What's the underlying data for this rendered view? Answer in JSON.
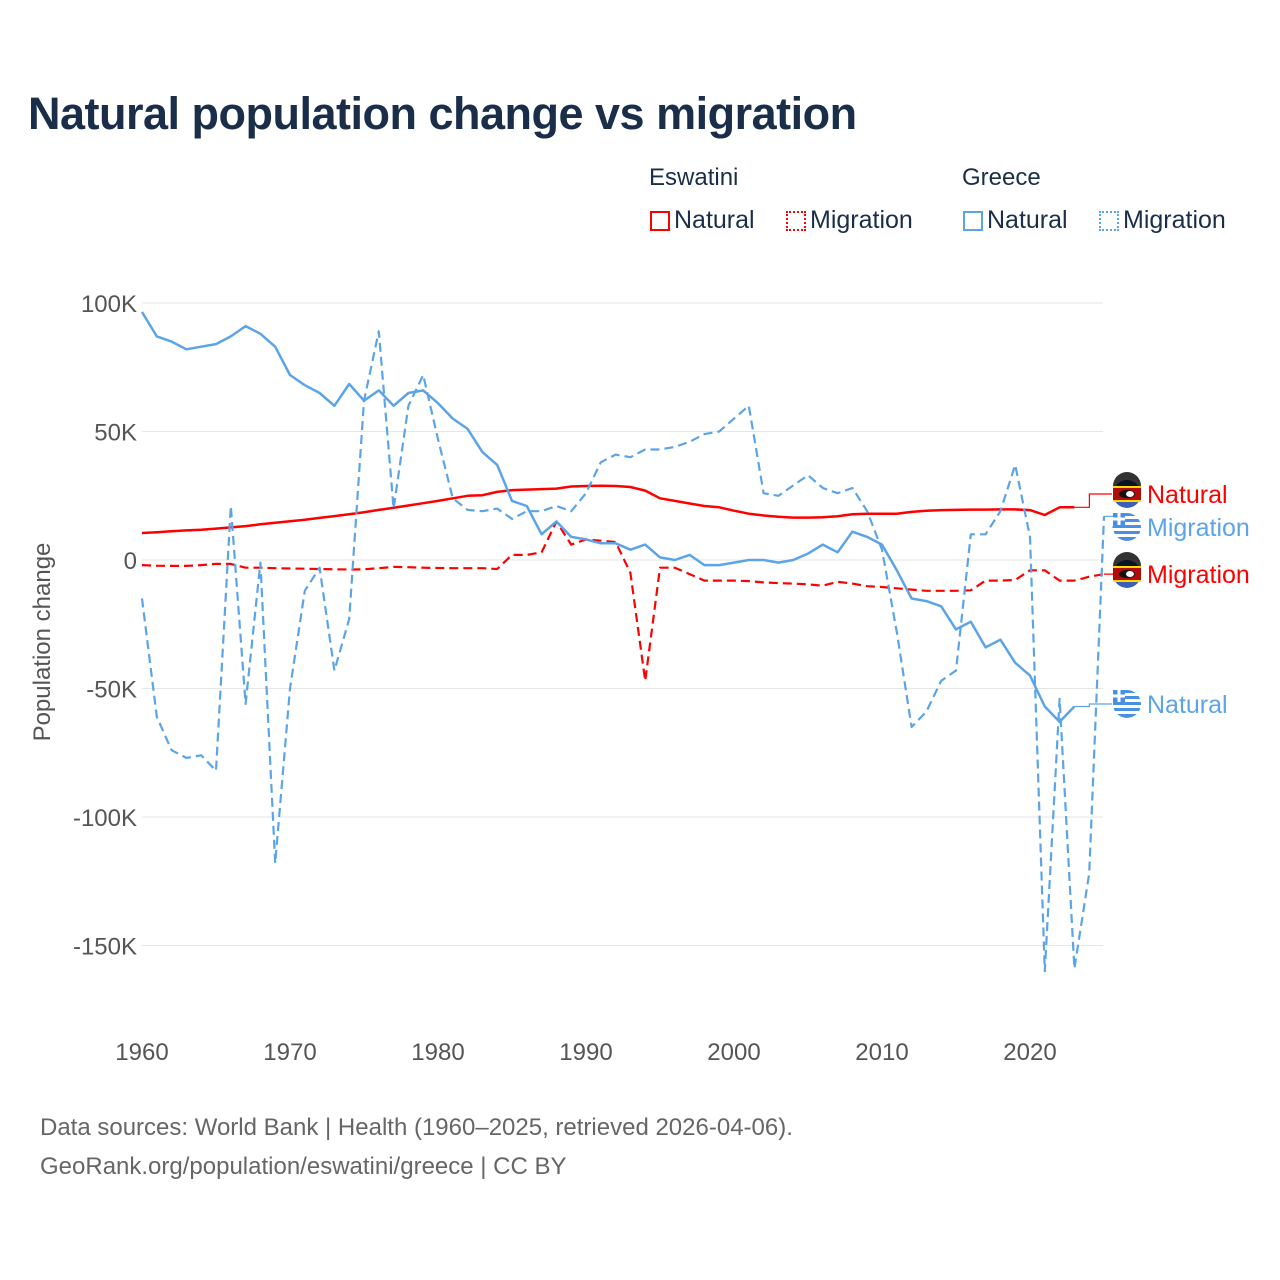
{
  "title": "Natural population change vs migration",
  "legend": {
    "groups": [
      {
        "name": "Eswatini",
        "items": [
          "Natural",
          "Migration"
        ],
        "color": "#ff0000"
      },
      {
        "name": "Greece",
        "items": [
          "Natural",
          "Migration"
        ],
        "color": "#5ba4e8"
      }
    ]
  },
  "footer": {
    "line1": "Data sources: World Bank | Health (1960–2025, retrieved 2026-04-06).",
    "line2": "GeoRank.org/population/eswatini/greece | CC BY"
  },
  "chart_data": {
    "type": "line",
    "title": "Natural population change vs migration",
    "xlabel": "",
    "ylabel": "Population change",
    "xlim": [
      1960,
      2025
    ],
    "ylim": [
      -160000,
      100000
    ],
    "x_ticks": [
      "1960",
      "1970",
      "1980",
      "1990",
      "2000",
      "2010",
      "2020"
    ],
    "y_ticks": [
      {
        "v": 100000,
        "label": "100K"
      },
      {
        "v": 50000,
        "label": "50K"
      },
      {
        "v": 0,
        "label": "0"
      },
      {
        "v": -50000,
        "label": "-50K"
      },
      {
        "v": -100000,
        "label": "-100K"
      },
      {
        "v": -150000,
        "label": "-150K"
      }
    ],
    "grid": true,
    "series": [
      {
        "name": "Eswatini Natural",
        "end_label": "Natural",
        "country": "Eswatini",
        "color": "#ff0000",
        "dash": false,
        "start": 1960,
        "values_k": [
          10.5,
          10.8,
          11.2,
          11.5,
          11.8,
          12.2,
          12.7,
          13.2,
          13.9,
          14.5,
          15.1,
          15.7,
          16.4,
          17.1,
          17.8,
          18.6,
          19.5,
          20.3,
          21.2,
          22.1,
          23,
          24,
          25,
          25.2,
          26.5,
          27.2,
          27.4,
          27.6,
          27.8,
          28.6,
          28.8,
          28.9,
          28.8,
          28.4,
          27,
          24,
          23,
          22,
          21,
          20.5,
          19.2,
          18,
          17.3,
          16.8,
          16.5,
          16.5,
          16.6,
          17,
          17.8,
          18,
          18,
          18,
          18.7,
          19.2,
          19.4,
          19.5,
          19.6,
          19.6,
          19.7,
          19.7,
          19.4,
          17.5,
          20.5,
          20.5
        ]
      },
      {
        "name": "Eswatini Migration",
        "end_label": "Migration",
        "country": "Eswatini",
        "color": "#ff0000",
        "dash": true,
        "start": 1960,
        "values_k": [
          -2,
          -2.2,
          -2.3,
          -2.3,
          -2,
          -1.5,
          -1.5,
          -3,
          -3,
          -3.2,
          -3.3,
          -3.4,
          -3.5,
          -3.6,
          -3.7,
          -3.6,
          -3.2,
          -2.7,
          -2.8,
          -3,
          -3.1,
          -3.2,
          -3.2,
          -3.2,
          -3.5,
          2,
          2,
          3,
          15,
          6,
          8,
          7.5,
          7,
          -5,
          -47,
          -3,
          -3,
          -5.5,
          -8,
          -8,
          -8,
          -8.2,
          -8.7,
          -9,
          -9.2,
          -9.5,
          -10,
          -8.5,
          -9.2,
          -10.2,
          -10.5,
          -11,
          -11.5,
          -12,
          -12,
          -12,
          -11.8,
          -8,
          -8,
          -7.8,
          -4,
          -4,
          -8,
          -8,
          -6.5,
          -5.5
        ]
      },
      {
        "name": "Greece Natural",
        "end_label": "Natural",
        "country": "Greece",
        "color": "#5ba4e8",
        "dash": false,
        "start": 1960,
        "values_k": [
          96.5,
          87,
          85,
          82,
          83,
          84,
          87,
          91,
          88,
          83,
          72,
          68,
          65,
          60,
          68.5,
          62,
          66,
          60,
          65,
          66,
          61,
          55,
          51,
          42,
          37,
          23,
          21,
          10,
          15,
          9,
          8,
          6.5,
          6.5,
          4,
          6,
          1,
          0,
          2,
          -2,
          -2,
          -1,
          0,
          0,
          -1,
          0,
          2.5,
          6,
          3,
          11,
          9,
          6,
          -4,
          -15,
          -16,
          -18,
          -27,
          -24,
          -34,
          -31,
          -40,
          -45,
          -57,
          -63,
          -57
        ]
      },
      {
        "name": "Greece Migration",
        "end_label": "Migration",
        "country": "Greece",
        "color": "#5ba4e8",
        "dash": true,
        "start": 1960,
        "values_k": [
          -15,
          -61,
          -74,
          -77,
          -76,
          -82,
          21,
          -56,
          -1,
          -118,
          -50,
          -12,
          -3,
          -43,
          -23,
          62,
          89,
          20,
          60,
          72,
          47,
          24,
          19.5,
          19,
          20,
          16,
          19,
          19,
          21,
          19,
          26,
          38,
          41,
          40,
          43,
          43,
          44,
          46,
          49,
          50,
          55,
          60,
          26,
          25,
          29,
          33,
          28,
          26,
          28,
          19,
          4,
          -28,
          -65,
          -59,
          -47,
          -43,
          10,
          10,
          19,
          37,
          9,
          -160,
          -54,
          -159,
          -122,
          17
        ]
      }
    ]
  }
}
